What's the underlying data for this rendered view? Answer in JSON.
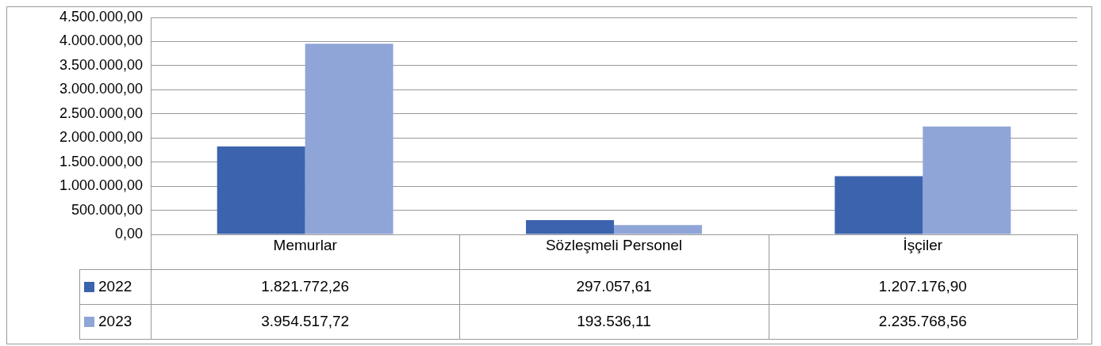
{
  "chart_data": {
    "type": "bar",
    "categories": [
      "Memurlar",
      "Sözleşmeli Personel",
      "İşçiler"
    ],
    "series": [
      {
        "name": "2022",
        "color": "#3c64ae",
        "values": [
          1821772.26,
          297057.61,
          1207176.9
        ],
        "value_labels": [
          "1.821.772,26",
          "297.057,61",
          "1.207.176,90"
        ]
      },
      {
        "name": "2023",
        "color": "#8fa5d7",
        "values": [
          3954517.72,
          193536.11,
          2235768.56
        ],
        "value_labels": [
          "3.954.517,72",
          "193.536,11",
          "2.235.768,56"
        ]
      }
    ],
    "ylim": [
      0,
      4500000
    ],
    "yticks": [
      {
        "value": 0,
        "label": "0,00"
      },
      {
        "value": 500000,
        "label": "500.000,00"
      },
      {
        "value": 1000000,
        "label": "1.000.000,00"
      },
      {
        "value": 1500000,
        "label": "1.500.000,00"
      },
      {
        "value": 2000000,
        "label": "2.000.000,00"
      },
      {
        "value": 2500000,
        "label": "2.500.000,00"
      },
      {
        "value": 3000000,
        "label": "3.000.000,00"
      },
      {
        "value": 3500000,
        "label": "3.500.000,00"
      },
      {
        "value": 4000000,
        "label": "4.000.000,00"
      },
      {
        "value": 4500000,
        "label": "4.500.000,00"
      }
    ],
    "grid": "y",
    "legend": "bottom left"
  }
}
